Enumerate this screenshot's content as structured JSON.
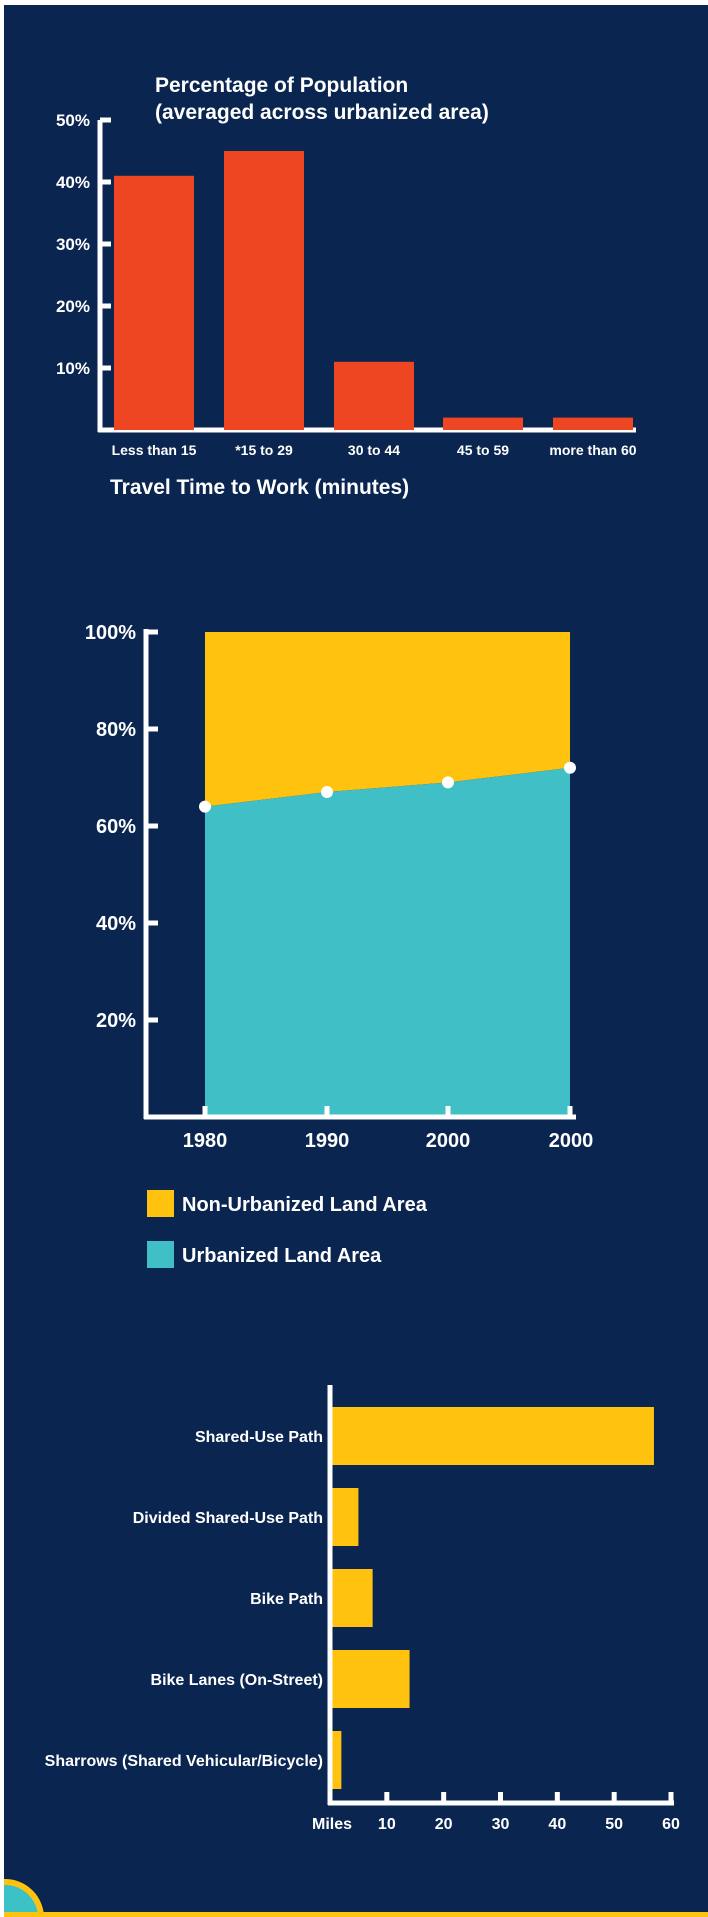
{
  "colors": {
    "background": "#0a2550",
    "bar_red": "#ee4523",
    "yellow": "#ffc20e",
    "teal": "#41bfc6",
    "axis": "#ffffff"
  },
  "chart_data": [
    {
      "type": "bar",
      "title": "Percentage of Population\n(averaged across urbanized area)",
      "xlabel": "Travel Time to Work (minutes)",
      "ylabel": "",
      "categories": [
        "Less than 15",
        "*15 to 29",
        "30 to 44",
        "45 to 59",
        "more than 60"
      ],
      "values": [
        41,
        45,
        11,
        2,
        2
      ],
      "y_ticks": [
        "10%",
        "20%",
        "30%",
        "40%",
        "50%"
      ],
      "y_tick_values": [
        10,
        20,
        30,
        40,
        50
      ],
      "ylim": [
        0,
        50
      ],
      "grid": false,
      "legend": "none"
    },
    {
      "type": "area",
      "x": [
        "1980",
        "1990",
        "2000",
        "2000"
      ],
      "series": [
        {
          "name": "Urbanized Land Area",
          "values": [
            64,
            67,
            69,
            72
          ],
          "color": "#41bfc6"
        },
        {
          "name": "Non-Urbanized Land Area",
          "values": [
            36,
            33,
            31,
            28
          ],
          "color": "#ffc20e"
        }
      ],
      "stacked": true,
      "y_ticks": [
        "20%",
        "40%",
        "60%",
        "80%",
        "100%"
      ],
      "y_tick_values": [
        20,
        40,
        60,
        80,
        100
      ],
      "ylim": [
        0,
        100
      ],
      "grid": false,
      "legend": "bottom",
      "legend_entries": [
        {
          "label": "Non-Urbanized Land Area",
          "color": "#ffc20e"
        },
        {
          "label": "Urbanized Land Area",
          "color": "#41bfc6"
        }
      ]
    },
    {
      "type": "bar",
      "orientation": "horizontal",
      "categories": [
        "Shared-Use Path",
        "Divided Shared-Use Path",
        "Bike Path",
        "Bike Lanes (On-Street)",
        "Sharrows (Shared Vehicular/Bicycle)"
      ],
      "values": [
        57,
        5,
        7.5,
        14,
        2
      ],
      "x_unit_label": "Miles",
      "x_ticks": [
        "10",
        "20",
        "30",
        "40",
        "50",
        "60"
      ],
      "x_tick_values": [
        10,
        20,
        30,
        40,
        50,
        60
      ],
      "xlim": [
        0,
        60
      ],
      "grid": false,
      "legend": "none"
    }
  ]
}
